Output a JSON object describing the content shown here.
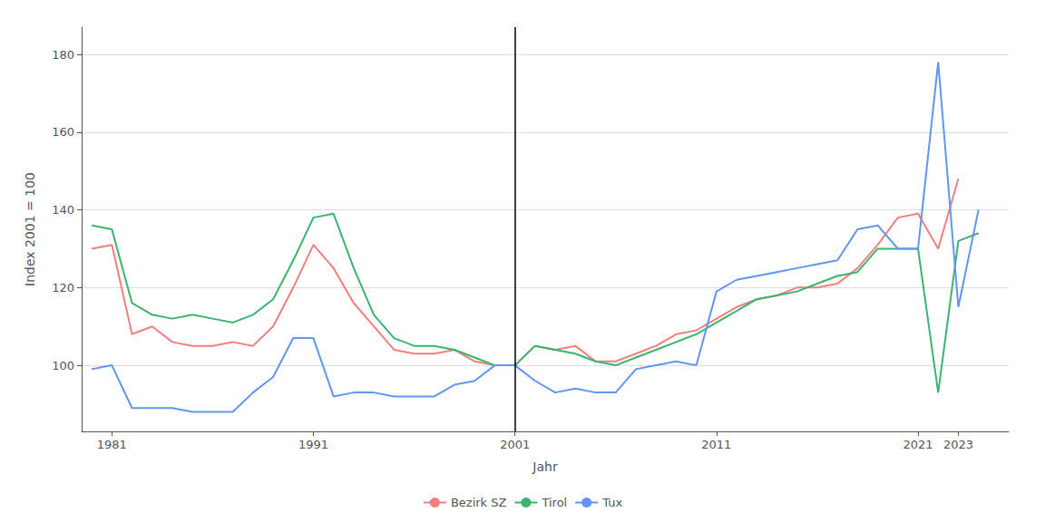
{
  "chart_data": {
    "type": "line",
    "x": [
      1980,
      1981,
      1982,
      1983,
      1984,
      1985,
      1986,
      1987,
      1988,
      1989,
      1990,
      1991,
      1992,
      1993,
      1994,
      1995,
      1996,
      1997,
      1998,
      1999,
      2000,
      2001,
      2002,
      2003,
      2004,
      2005,
      2006,
      2007,
      2008,
      2009,
      2010,
      2011,
      2012,
      2013,
      2014,
      2015,
      2016,
      2017,
      2018,
      2019,
      2020,
      2021,
      2022,
      2023,
      2024
    ],
    "series": [
      {
        "name": "Bezirk SZ",
        "color": "#F08080",
        "values": [
          130,
          131,
          108,
          110,
          106,
          105,
          105,
          106,
          105,
          110,
          120,
          131,
          125,
          116,
          110,
          104,
          103,
          103,
          104,
          101,
          100,
          100,
          105,
          104,
          105,
          101,
          101,
          103,
          105,
          108,
          109,
          112,
          115,
          117,
          118,
          120,
          120,
          121,
          125,
          131,
          138,
          139,
          130,
          148,
          null
        ]
      },
      {
        "name": "Tirol",
        "color": "#3CB371",
        "values": [
          136,
          135,
          116,
          113,
          112,
          113,
          112,
          111,
          113,
          117,
          127,
          138,
          139,
          125,
          113,
          107,
          105,
          105,
          104,
          102,
          100,
          100,
          105,
          104,
          103,
          101,
          100,
          102,
          104,
          106,
          108,
          111,
          114,
          117,
          118,
          119,
          121,
          123,
          124,
          130,
          130,
          130,
          93,
          132,
          134
        ]
      },
      {
        "name": "Tux",
        "color": "#6495ED",
        "values": [
          99,
          100,
          89,
          89,
          89,
          88,
          88,
          88,
          93,
          97,
          107,
          107,
          92,
          93,
          93,
          92,
          92,
          92,
          95,
          96,
          100,
          100,
          96,
          93,
          94,
          93,
          93,
          99,
          100,
          101,
          100,
          119,
          122,
          123,
          124,
          125,
          126,
          127,
          135,
          136,
          130,
          130,
          178,
          115,
          140
        ]
      }
    ],
    "xlabel": "Jahr",
    "ylabel": "Index 2001 = 100",
    "xlim": [
      1979.5,
      2025.5
    ],
    "xticks": [
      1981,
      1991,
      2001,
      2011,
      2021,
      2023
    ],
    "ylim": [
      83,
      187
    ],
    "yticks": [
      100,
      120,
      140,
      160,
      180
    ],
    "grid": true,
    "legend": "bottom",
    "vlines": [
      2001
    ]
  }
}
